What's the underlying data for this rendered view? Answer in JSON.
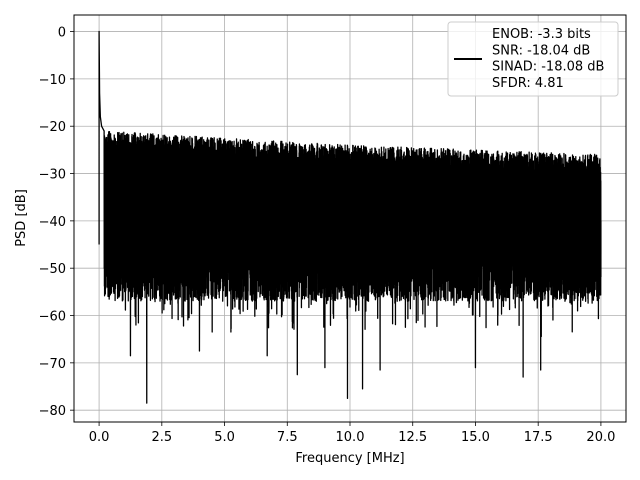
{
  "chart_data": {
    "type": "line",
    "title": "",
    "xlabel": "Frequency [MHz]",
    "ylabel": "PSD [dB]",
    "xlim": [
      -1.0,
      21.0
    ],
    "ylim": [
      -82.5,
      3.5
    ],
    "xticks": [
      0.0,
      2.5,
      5.0,
      7.5,
      10.0,
      12.5,
      15.0,
      17.5,
      20.0
    ],
    "xtick_labels": [
      "0.0",
      "2.5",
      "5.0",
      "7.5",
      "10.0",
      "12.5",
      "15.0",
      "17.5",
      "20.0"
    ],
    "yticks": [
      0,
      -10,
      -20,
      -30,
      -40,
      -50,
      -60,
      -70,
      -80
    ],
    "ytick_labels": [
      "0",
      "−10",
      "−20",
      "−30",
      "−40",
      "−50",
      "−60",
      "−70",
      "−80"
    ],
    "grid": true,
    "legend_position": "top-right",
    "series": [
      {
        "name": "ENOB: -3.3 bits\nSNR: -18.04 dB\nSINAD: -18.08 dB\nSFDR: 4.81",
        "color": "#000000",
        "freq_range_mhz": [
          0.0,
          20.0
        ],
        "fundamental": {
          "freq": 0.0,
          "psd_db": 0.0
        },
        "near_dc_decay": [
          [
            0.02,
            -13
          ],
          [
            0.05,
            -18
          ],
          [
            0.1,
            -20
          ],
          [
            0.2,
            -21
          ]
        ],
        "upper_envelope_db": [
          [
            0.2,
            -21
          ],
          [
            5.0,
            -22.5
          ],
          [
            10.0,
            -24
          ],
          [
            15.0,
            -25
          ],
          [
            20.0,
            -26
          ]
        ],
        "noise_band_db": [
          -55,
          -22
        ],
        "deep_nulls": [
          [
            1.9,
            -78.5
          ],
          [
            1.25,
            -68.5
          ],
          [
            4.0,
            -67.5
          ],
          [
            6.7,
            -68.5
          ],
          [
            7.9,
            -72.5
          ],
          [
            9.0,
            -71.0
          ],
          [
            9.9,
            -77.5
          ],
          [
            10.5,
            -75.5
          ],
          [
            11.2,
            -71.5
          ],
          [
            15.0,
            -71.0
          ],
          [
            16.9,
            -73.0
          ],
          [
            17.6,
            -71.5
          ]
        ]
      }
    ]
  }
}
